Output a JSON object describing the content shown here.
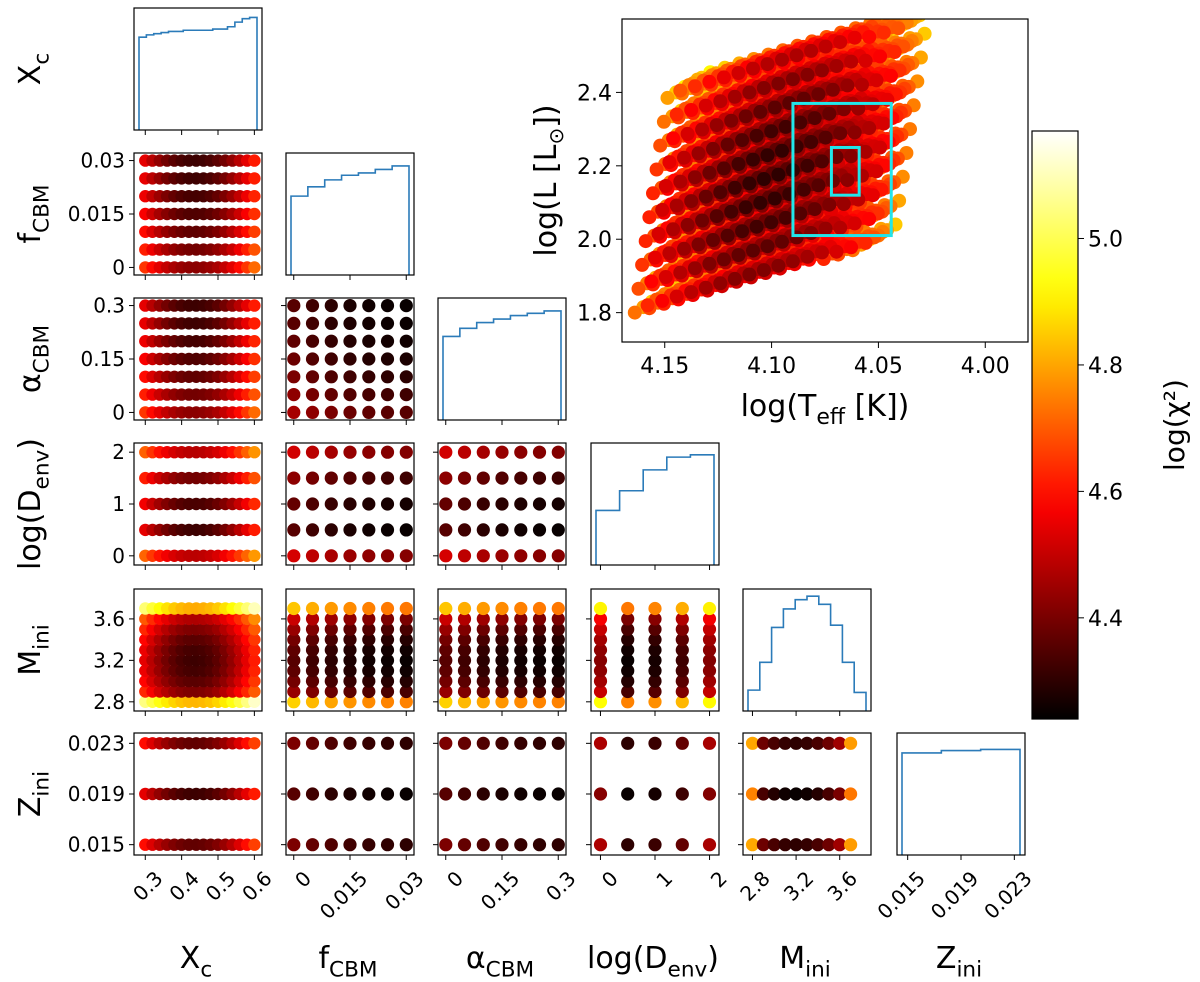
{
  "chart_data": {
    "type": "corner-scatter",
    "description_free": true,
    "colormap": "hot",
    "colorbar": {
      "label": "log(χ²)",
      "range": [
        4.24,
        5.17
      ],
      "ticks": [
        "4.4",
        "4.6",
        "4.8",
        "5.0"
      ],
      "tick_values": [
        4.4,
        4.6,
        4.8,
        5.0
      ]
    },
    "parameters": [
      {
        "key": "Xc",
        "label": "X",
        "sub": "c",
        "range": [
          0.28,
          0.61
        ],
        "ticks": [
          "0.3",
          "0.4",
          "0.5",
          "0.6"
        ],
        "tick_values": [
          0.3,
          0.4,
          0.5,
          0.6
        ]
      },
      {
        "key": "fCBM",
        "label": "f",
        "sub": "CBM",
        "range": [
          -0.001,
          0.031
        ],
        "ticks": [
          "0",
          "0.015",
          "0.03"
        ],
        "tick_values": [
          0,
          0.015,
          0.03
        ]
      },
      {
        "key": "aCBM",
        "label": "α",
        "sub": "CBM",
        "range": [
          -0.01,
          0.31
        ],
        "ticks": [
          "0",
          "0.15",
          "0.3"
        ],
        "tick_values": [
          0,
          0.15,
          0.3
        ]
      },
      {
        "key": "Denv",
        "label": "log(D",
        "sub": "env",
        "suffix": ")",
        "range": [
          -0.1,
          2.1
        ],
        "ticks": [
          "0",
          "1",
          "2"
        ],
        "tick_values": [
          0,
          1,
          2
        ]
      },
      {
        "key": "Mini",
        "label": "M",
        "sub": "ini",
        "range": [
          2.75,
          3.85
        ],
        "ticks": [
          "2.8",
          "3.2",
          "3.6"
        ],
        "tick_values": [
          2.8,
          3.2,
          3.6
        ]
      },
      {
        "key": "Zini",
        "label": "Z",
        "sub": "ini",
        "range": [
          0.0145,
          0.0235
        ],
        "ticks": [
          "0.015",
          "0.019",
          "0.023"
        ],
        "tick_values": [
          0.015,
          0.019,
          0.023
        ]
      }
    ],
    "grid_values": {
      "Xc": [
        0.3,
        0.32,
        0.34,
        0.36,
        0.38,
        0.4,
        0.42,
        0.44,
        0.46,
        0.48,
        0.5,
        0.52,
        0.54,
        0.56,
        0.58,
        0.6
      ],
      "fCBM": [
        0,
        0.005,
        0.01,
        0.015,
        0.02,
        0.025,
        0.03
      ],
      "aCBM": [
        0,
        0.05,
        0.1,
        0.15,
        0.2,
        0.25,
        0.3
      ],
      "Denv": [
        0,
        0.5,
        1,
        1.5,
        2
      ],
      "Mini": [
        2.8,
        2.9,
        3.0,
        3.1,
        3.2,
        3.3,
        3.4,
        3.5,
        3.6,
        3.7
      ],
      "Zini": [
        0.015,
        0.019,
        0.023
      ]
    },
    "best_fit": {
      "Xc": 0.44,
      "fCBM": 0.03,
      "aCBM": 0.3,
      "Denv": 0.5,
      "Mini": 3.2,
      "Zini": 0.019
    },
    "histograms": {
      "Xc": [
        0.8,
        0.82,
        0.83,
        0.84,
        0.85,
        0.85,
        0.86,
        0.86,
        0.86,
        0.86,
        0.87,
        0.87,
        0.89,
        0.93,
        0.96,
        0.97
      ],
      "fCBM": [
        0.68,
        0.76,
        0.82,
        0.86,
        0.88,
        0.91,
        0.94
      ],
      "aCBM": [
        0.72,
        0.79,
        0.84,
        0.87,
        0.9,
        0.92,
        0.94
      ],
      "Denv": [
        0.47,
        0.64,
        0.82,
        0.93,
        0.95
      ],
      "Mini": [
        0.18,
        0.42,
        0.72,
        0.88,
        0.96,
        0.99,
        0.92,
        0.74,
        0.42,
        0.16
      ],
      "Zini": [
        0.88,
        0.9,
        0.91
      ]
    },
    "hr_diagram": {
      "xlabel": "log(T",
      "xlabel_sub": "eff",
      "xlabel_suffix": " [K])",
      "ylabel": "log(L [L",
      "ylabel_suffix": "])",
      "xlim": [
        4.17,
        3.98
      ],
      "ylim": [
        1.72,
        2.6
      ],
      "xticks": [
        "4.15",
        "4.10",
        "4.05",
        "4.00"
      ],
      "xtick_values": [
        4.15,
        4.1,
        4.05,
        4.0
      ],
      "yticks": [
        "1.8",
        "2.0",
        "2.2",
        "2.4"
      ],
      "ytick_values": [
        1.8,
        2.0,
        2.2,
        2.4
      ],
      "error_box_1sigma": {
        "teff": [
          4.059,
          4.072
        ],
        "logL": [
          2.12,
          2.25
        ]
      },
      "error_box_3sigma": {
        "teff": [
          4.044,
          4.09
        ],
        "logL": [
          2.01,
          2.37
        ]
      },
      "error_box_color": "#22e5ea"
    }
  },
  "colors": {
    "hist_line": "#2b7bb9",
    "box": "#22e5ea"
  }
}
